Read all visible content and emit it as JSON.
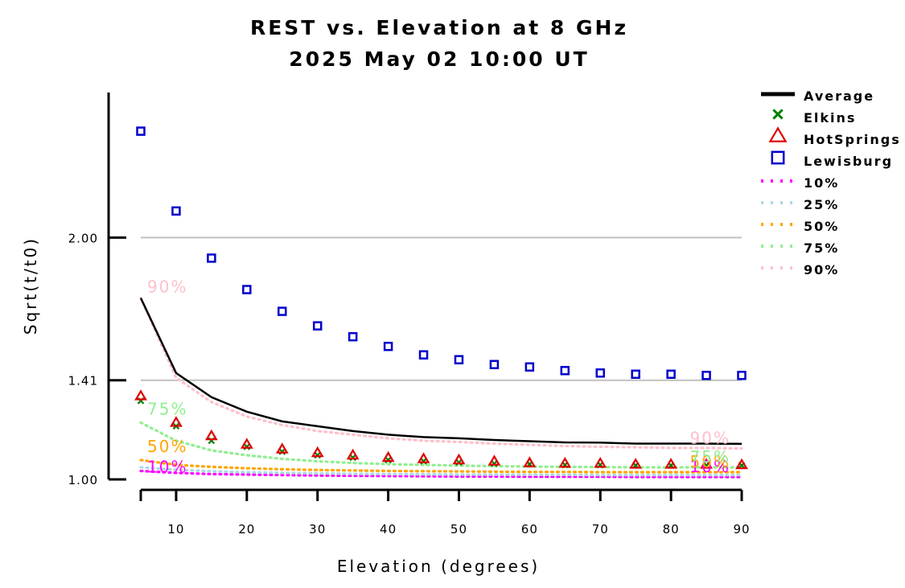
{
  "chart_data": {
    "type": "line",
    "title": "REST vs. Elevation at 8 GHz",
    "subtitle": "2025 May 02 10:00 UT",
    "xlabel": "Elevation (degrees)",
    "ylabel": "Sqrt(t/t0)",
    "xlim": [
      5,
      90
    ],
    "ylim": [
      1.0,
      2.6
    ],
    "x_ticks": [
      10,
      20,
      30,
      40,
      50,
      60,
      70,
      80,
      90
    ],
    "x_tick_labels": [
      "10",
      "20",
      "30",
      "40",
      "50",
      "60",
      "70",
      "80",
      "90"
    ],
    "y_ticks": [
      1.0,
      1.41,
      2.0
    ],
    "y_tick_labels": [
      "1.00",
      "1.41",
      "2.00"
    ],
    "gridlines_y": [
      1.41,
      2.0
    ],
    "grid_color": "#c0c0c0",
    "legend_position": "top-right outside",
    "x": [
      5,
      10,
      15,
      20,
      25,
      30,
      35,
      40,
      45,
      50,
      55,
      60,
      65,
      70,
      75,
      80,
      85,
      90
    ],
    "series": [
      {
        "name": "Average",
        "style": "line",
        "color": "#000000",
        "values": [
          1.75,
          1.44,
          1.34,
          1.28,
          1.24,
          1.22,
          1.2,
          1.185,
          1.175,
          1.17,
          1.163,
          1.158,
          1.153,
          1.152,
          1.148,
          1.148,
          1.148,
          1.147
        ]
      },
      {
        "name": "Elkins",
        "style": "marker",
        "marker": "x",
        "color": "#008000",
        "values": [
          1.325,
          1.22,
          1.16,
          1.135,
          1.115,
          1.1,
          1.09,
          1.08,
          1.075,
          1.07,
          1.065,
          1.063,
          1.06,
          1.06,
          1.058,
          1.058,
          1.058,
          1.058
        ]
      },
      {
        "name": "HotSprings",
        "style": "marker",
        "marker": "triangle",
        "color": "#e00000",
        "values": [
          1.345,
          1.235,
          1.18,
          1.145,
          1.125,
          1.11,
          1.1,
          1.09,
          1.085,
          1.08,
          1.075,
          1.068,
          1.066,
          1.066,
          1.062,
          1.062,
          1.062,
          1.06
        ]
      },
      {
        "name": "Lewisburg",
        "style": "marker",
        "marker": "square",
        "color": "#0000cc",
        "values": [
          2.44,
          2.11,
          1.915,
          1.785,
          1.695,
          1.635,
          1.59,
          1.55,
          1.515,
          1.495,
          1.475,
          1.465,
          1.45,
          1.44,
          1.435,
          1.435,
          1.43,
          1.43
        ]
      },
      {
        "name": "10%",
        "style": "dotted",
        "color": "#ff00ff",
        "label_text": "10%",
        "values": [
          1.035,
          1.027,
          1.022,
          1.02,
          1.018,
          1.016,
          1.015,
          1.014,
          1.013,
          1.012,
          1.012,
          1.011,
          1.011,
          1.011,
          1.01,
          1.01,
          1.01,
          1.01
        ]
      },
      {
        "name": "25%",
        "style": "dotted",
        "color": "#add8e6",
        "values": [
          1.05,
          1.04,
          1.034,
          1.03,
          1.027,
          1.025,
          1.023,
          1.022,
          1.021,
          1.02,
          1.02,
          1.019,
          1.019,
          1.018,
          1.018,
          1.018,
          1.018,
          1.018
        ]
      },
      {
        "name": "50%",
        "style": "dotted",
        "color": "#ffa500",
        "label_text": "50%",
        "values": [
          1.08,
          1.06,
          1.052,
          1.046,
          1.042,
          1.039,
          1.037,
          1.035,
          1.034,
          1.033,
          1.032,
          1.031,
          1.031,
          1.03,
          1.03,
          1.03,
          1.03,
          1.03
        ]
      },
      {
        "name": "75%",
        "style": "dotted",
        "color": "#90ee90",
        "label_text": "75%",
        "values": [
          1.235,
          1.16,
          1.12,
          1.1,
          1.085,
          1.075,
          1.068,
          1.063,
          1.06,
          1.057,
          1.055,
          1.053,
          1.052,
          1.051,
          1.05,
          1.05,
          1.05,
          1.05
        ]
      },
      {
        "name": "90%",
        "style": "dotted",
        "color": "#ffc0cb",
        "label_text": "90%",
        "values": [
          1.75,
          1.42,
          1.32,
          1.26,
          1.225,
          1.2,
          1.185,
          1.17,
          1.16,
          1.155,
          1.148,
          1.143,
          1.138,
          1.135,
          1.133,
          1.13,
          1.13,
          1.128
        ]
      }
    ]
  }
}
